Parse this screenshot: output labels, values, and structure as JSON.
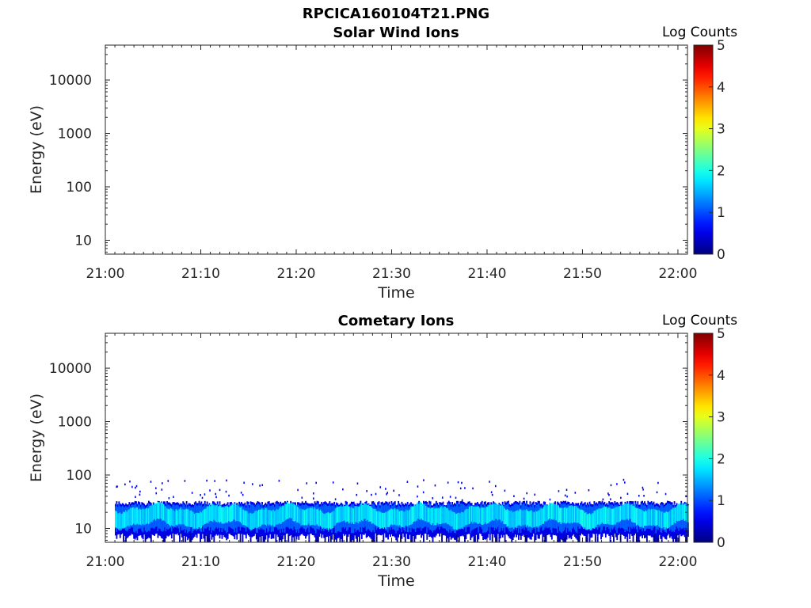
{
  "main_title": "RPCICA160104T21.PNG",
  "chart_data": [
    {
      "type": "heatmap",
      "title": "Solar Wind Ions",
      "xlabel": "Time",
      "ylabel": "Energy (eV)",
      "x_ticks": [
        "21:00",
        "21:10",
        "21:20",
        "21:30",
        "21:40",
        "21:50",
        "22:00"
      ],
      "x_range": [
        "21:00",
        "22:01"
      ],
      "y_scale": "log",
      "y_ticks": [
        10,
        100,
        1000,
        10000
      ],
      "y_tick_labels": [
        "10",
        "100",
        "1000",
        "10000"
      ],
      "ylim": [
        5.5,
        45000
      ],
      "colorbar": {
        "label": "Log Counts",
        "range": [
          0,
          5
        ],
        "ticks": [
          "0",
          "1",
          "2",
          "3",
          "4",
          "5"
        ],
        "colormap": "jet"
      },
      "data_summary": {
        "signal": "none"
      }
    },
    {
      "type": "heatmap",
      "title": "Cometary Ions",
      "xlabel": "Time",
      "ylabel": "Energy (eV)",
      "x_ticks": [
        "21:00",
        "21:10",
        "21:20",
        "21:30",
        "21:40",
        "21:50",
        "22:00"
      ],
      "x_range": [
        "21:00",
        "22:01"
      ],
      "y_scale": "log",
      "y_ticks": [
        10,
        100,
        1000,
        10000
      ],
      "y_tick_labels": [
        "10",
        "100",
        "1000",
        "10000"
      ],
      "ylim": [
        5.5,
        45000
      ],
      "colorbar": {
        "label": "Log Counts",
        "range": [
          0,
          5
        ],
        "ticks": [
          "0",
          "1",
          "2",
          "3",
          "4",
          "5"
        ],
        "colormap": "jet"
      },
      "data_summary": {
        "band_time_range": [
          "21:01",
          "22:01"
        ],
        "band_energy_range_eV": [
          6,
          30
        ],
        "core_energy_range_eV": [
          12,
          24
        ],
        "core_log_counts": 1.8,
        "edge_log_counts": 0.5,
        "sparse_points_energy_range_eV": [
          35,
          85
        ],
        "sparse_points_log_counts": 0.3
      }
    }
  ]
}
